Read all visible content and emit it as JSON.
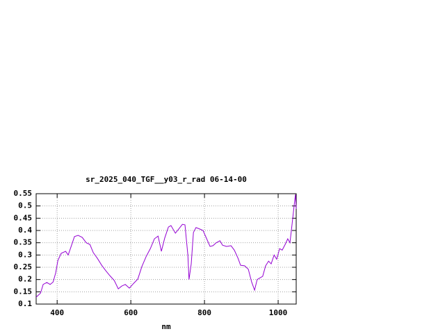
{
  "chart_data": {
    "type": "line",
    "title": "sr_2025_040_TGF__y03_r_rad 06-14-00",
    "xlabel": "nm",
    "x": [
      343,
      355,
      362,
      372,
      381,
      389,
      396,
      402,
      411,
      423,
      430,
      438,
      447,
      457,
      468,
      479,
      489,
      498,
      509,
      521,
      532,
      543,
      555,
      566,
      575,
      585,
      596,
      608,
      619,
      630,
      642,
      653,
      664,
      674,
      683,
      692,
      702,
      709,
      721,
      730,
      740,
      747,
      755,
      758,
      764,
      770,
      777,
      787,
      796,
      806,
      815,
      823,
      832,
      842,
      849,
      860,
      872,
      881,
      891,
      898,
      909,
      919,
      928,
      936,
      943,
      951,
      958,
      966,
      974,
      981,
      989,
      996,
      1004,
      1011,
      1019,
      1026,
      1032,
      1038,
      1043,
      1047,
      1049
    ],
    "values": [
      0.128,
      0.145,
      0.18,
      0.188,
      0.18,
      0.19,
      0.227,
      0.278,
      0.307,
      0.315,
      0.3,
      0.335,
      0.375,
      0.38,
      0.372,
      0.35,
      0.343,
      0.31,
      0.287,
      0.258,
      0.236,
      0.216,
      0.196,
      0.162,
      0.173,
      0.18,
      0.165,
      0.185,
      0.202,
      0.253,
      0.295,
      0.326,
      0.366,
      0.377,
      0.315,
      0.369,
      0.414,
      0.42,
      0.389,
      0.406,
      0.425,
      0.423,
      0.298,
      0.2,
      0.264,
      0.392,
      0.412,
      0.406,
      0.4,
      0.366,
      0.335,
      0.338,
      0.35,
      0.358,
      0.34,
      0.335,
      0.338,
      0.32,
      0.287,
      0.258,
      0.256,
      0.242,
      0.19,
      0.157,
      0.2,
      0.207,
      0.213,
      0.256,
      0.275,
      0.264,
      0.3,
      0.283,
      0.326,
      0.32,
      0.343,
      0.366,
      0.35,
      0.428,
      0.496,
      0.547,
      0.488
    ],
    "color": "#9400d3",
    "xlim": [
      343,
      1049
    ],
    "xticks": [
      400,
      600,
      800,
      1000
    ],
    "ylim": [
      0.1,
      0.55
    ],
    "yticks": [
      0.1,
      0.15,
      0.2,
      0.25,
      0.3,
      0.35,
      0.4,
      0.45,
      0.5,
      0.55
    ],
    "grid": true
  }
}
